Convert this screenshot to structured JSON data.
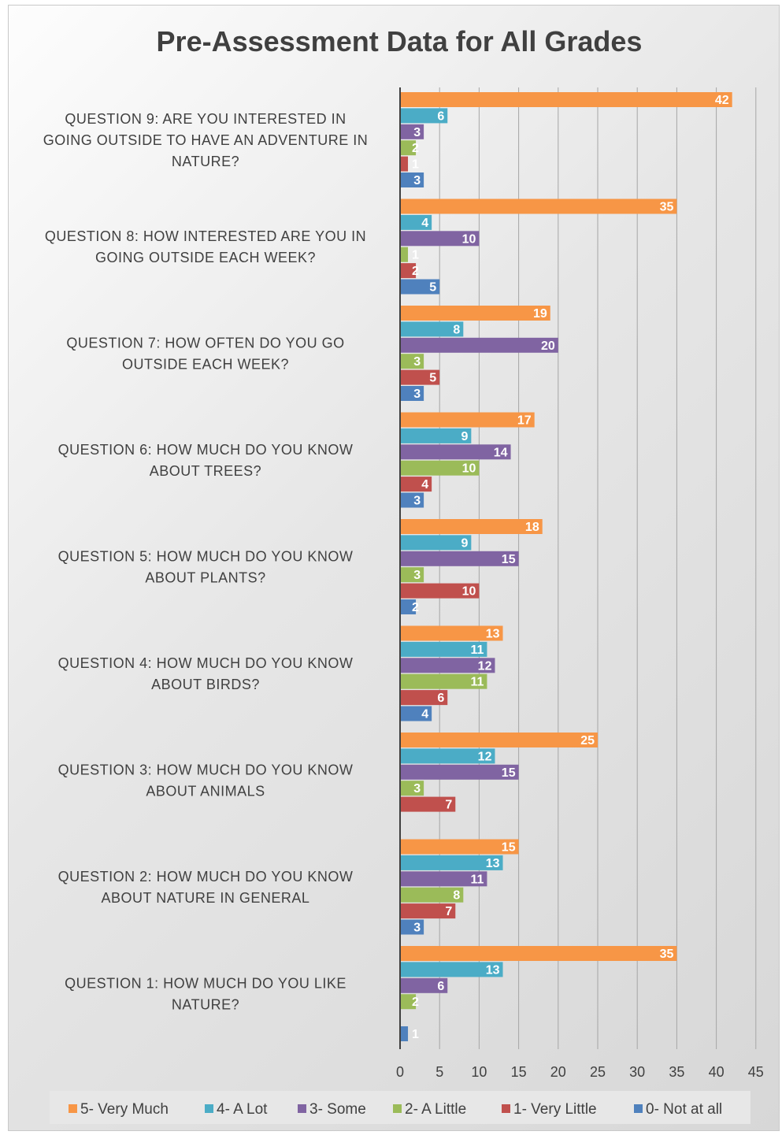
{
  "chart_data": {
    "type": "bar",
    "orientation": "horizontal",
    "title": "Pre-Assessment Data for All Grades",
    "categories": [
      [
        "QUESTION 9: ARE YOU INTERESTED IN",
        "GOING OUTSIDE TO HAVE AN ADVENTURE IN",
        "NATURE?"
      ],
      [
        "QUESTION 8: HOW INTERESTED ARE YOU IN",
        "GOING OUTSIDE EACH WEEK?"
      ],
      [
        "QUESTION 7: HOW OFTEN DO YOU GO",
        "OUTSIDE EACH WEEK?"
      ],
      [
        "QUESTION 6: HOW MUCH DO YOU KNOW",
        "ABOUT TREES?"
      ],
      [
        "QUESTION 5: HOW MUCH DO YOU KNOW",
        "ABOUT PLANTS?"
      ],
      [
        "QUESTION 4: HOW MUCH DO YOU KNOW",
        "ABOUT BIRDS?"
      ],
      [
        "QUESTION 3: HOW MUCH DO YOU KNOW",
        "ABOUT ANIMALS"
      ],
      [
        "QUESTION 2: HOW MUCH DO YOU KNOW",
        "ABOUT NATURE IN GENERAL"
      ],
      [
        "QUESTION 1: HOW MUCH DO YOU LIKE",
        "NATURE?"
      ]
    ],
    "series": [
      {
        "name": "5- Very Much",
        "color": "#f79646",
        "values": [
          42,
          35,
          19,
          17,
          18,
          13,
          25,
          15,
          35
        ]
      },
      {
        "name": "4- A Lot",
        "color": "#4bacc6",
        "values": [
          6,
          4,
          8,
          9,
          9,
          11,
          12,
          13,
          13
        ]
      },
      {
        "name": "3- Some",
        "color": "#8064a2",
        "values": [
          3,
          10,
          20,
          14,
          15,
          12,
          15,
          11,
          6
        ]
      },
      {
        "name": "2- A Little",
        "color": "#9bbb59",
        "values": [
          2,
          1,
          3,
          10,
          3,
          11,
          3,
          8,
          2
        ]
      },
      {
        "name": "1- Very Little",
        "color": "#c0504d",
        "values": [
          1,
          2,
          5,
          4,
          10,
          6,
          7,
          7,
          null
        ]
      },
      {
        "name": "0- Not at all",
        "color": "#4f81bd",
        "values": [
          3,
          5,
          3,
          3,
          2,
          4,
          null,
          3,
          1
        ]
      }
    ],
    "xticks": [
      "0",
      "5",
      "10",
      "15",
      "20",
      "25",
      "30",
      "35",
      "40",
      "45"
    ],
    "xlim": [
      0,
      45
    ],
    "grid": "vertical",
    "legend": "bottom",
    "xlabel": "",
    "ylabel": ""
  }
}
